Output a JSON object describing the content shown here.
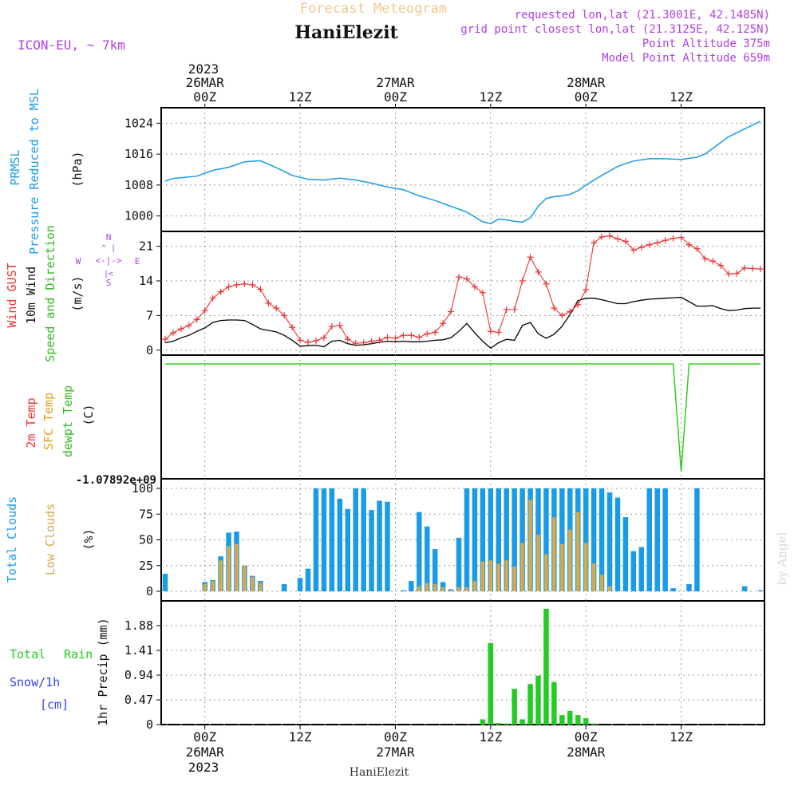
{
  "header": {
    "product": "Forecast Meteogram",
    "station": "HaniElezit",
    "model": "ICON-EU, ~ 7km",
    "requested": "requested lon,lat (21.3001E, 42.1485N)",
    "gridpoint": "grid point closest lon,lat (21.3125E, 42.125N)",
    "point_alt": "Point Altitude 375m",
    "model_alt": "Model Point Altitude 659m",
    "watermark": "by Angel"
  },
  "colors": {
    "pressure": "#1a9be6",
    "gust": "#ee3333",
    "wind": "#000000",
    "temp2m": "#ee3333",
    "sfc": "#e6a020",
    "dewpt": "#33cc22",
    "total_clouds": "#1a9be6",
    "low_clouds": "#d6a94a",
    "rain": "#22cc22",
    "snow": "#3344ee",
    "compass": "#b040e0",
    "title_faded": "#f0c890",
    "info": "#b040e0",
    "grid": "#999999"
  },
  "time_axis": {
    "top_year": "2023",
    "bottom_year": "2023",
    "ticks": [
      {
        "hour": 0,
        "label": "00Z",
        "date": "26MAR"
      },
      {
        "hour": 12,
        "label": "12Z",
        "date": ""
      },
      {
        "hour": 24,
        "label": "00Z",
        "date": "27MAR"
      },
      {
        "hour": 36,
        "label": "12Z",
        "date": ""
      },
      {
        "hour": 48,
        "label": "00Z",
        "date": "28MAR"
      },
      {
        "hour": 60,
        "label": "12Z",
        "date": ""
      }
    ]
  },
  "panels": {
    "pressure": {
      "label1": "PRMSL",
      "label2": "Pressure Reduced to MSL",
      "unit": "(hPa)"
    },
    "wind": {
      "label1": "Wind GUST",
      "label2": "10m Wind",
      "label3": "Speed and Direction",
      "unit": "(m/s)",
      "compass": {
        "n": "N",
        "s": "S",
        "w": "W",
        "e": "E"
      }
    },
    "temp": {
      "label1": "2m Temp",
      "label2": "SFC Temp",
      "label3": "dewpt Temp",
      "unit": "(C)"
    },
    "clouds": {
      "label1": "Total Clouds",
      "label2": "Low Clouds",
      "unit": "(%)"
    },
    "precip": {
      "label1": "Total",
      "label1b": "Rain",
      "label2": "Snow/1h",
      "label3": "[cm]",
      "unit": "1hr Precip (mm)"
    }
  },
  "chart_data": [
    {
      "type": "line",
      "title": "",
      "ylabel": "Pressure Reduced to MSL (hPa)",
      "ylim": [
        996,
        1028
      ],
      "yticks": [
        1000,
        1008,
        1016,
        1024
      ],
      "xlim": [
        -5.5,
        70.5
      ],
      "grid": true,
      "x": [
        -5,
        -4,
        -3,
        -1,
        1,
        3,
        5,
        7,
        9,
        11,
        13,
        15,
        17,
        19,
        21,
        23,
        25,
        27,
        29,
        31,
        33,
        35,
        36,
        37,
        38,
        39,
        40,
        41,
        42,
        43,
        44,
        45,
        46,
        47,
        48,
        50,
        52,
        54,
        56,
        58,
        60,
        62,
        63,
        64,
        66,
        68,
        70
      ],
      "series": [
        {
          "name": "PRMSL",
          "values": [
            1009,
            1009.7,
            1009.9,
            1010.3,
            1011.8,
            1012.6,
            1014,
            1014.3,
            1012.5,
            1010.5,
            1009.5,
            1009.3,
            1009.8,
            1009.3,
            1008.5,
            1007.5,
            1006.8,
            1005.2,
            1004,
            1002.5,
            1001,
            998.5,
            998,
            999.2,
            999,
            998.6,
            998.4,
            999.5,
            1002.5,
            1004.5,
            1005,
            1005.2,
            1005.6,
            1006.5,
            1008,
            1010.5,
            1012.8,
            1014.2,
            1014.8,
            1014.8,
            1014.6,
            1015.2,
            1016,
            1017.5,
            1020.5,
            1022.5,
            1024.5
          ]
        }
      ]
    },
    {
      "type": "line",
      "title": "",
      "ylabel": "Wind GUST / 10m Wind Speed and Direction (m/s)",
      "ylim": [
        -1,
        24
      ],
      "yticks": [
        0,
        7,
        14,
        21
      ],
      "xlim": [
        -5.5,
        70.5
      ],
      "grid": true,
      "x": [
        -5,
        -4,
        -3,
        -2,
        -1,
        0,
        1,
        2,
        3,
        4,
        5,
        6,
        7,
        8,
        9,
        10,
        11,
        12,
        13,
        14,
        15,
        16,
        17,
        18,
        19,
        20,
        21,
        22,
        23,
        24,
        25,
        26,
        27,
        28,
        29,
        30,
        31,
        32,
        33,
        34,
        35,
        36,
        37,
        38,
        39,
        40,
        41,
        42,
        43,
        44,
        45,
        46,
        47,
        48,
        49,
        50,
        51,
        52,
        53,
        54,
        55,
        56,
        57,
        58,
        59,
        60,
        61,
        62,
        63,
        64,
        65,
        66,
        67,
        68,
        69,
        70
      ],
      "series": [
        {
          "name": "Wind GUST",
          "values": [
            2.2,
            3.5,
            4.3,
            5.0,
            6.2,
            8.0,
            10.5,
            11.8,
            12.8,
            13.2,
            13.4,
            13.2,
            12.3,
            9.5,
            8.5,
            7.0,
            4.6,
            2.0,
            1.6,
            1.9,
            2.5,
            4.8,
            5.0,
            2.2,
            1.4,
            1.5,
            1.8,
            2.0,
            2.6,
            2.4,
            3.0,
            3.0,
            2.6,
            3.3,
            3.6,
            5.4,
            7.8,
            14.8,
            14.4,
            12.8,
            11.6,
            3.8,
            3.6,
            8.2,
            8.2,
            14.0,
            18.8,
            15.8,
            13.4,
            8.5,
            7.0,
            7.8,
            9.2,
            12.2,
            21.7,
            22.9,
            23.1,
            22.5,
            22.0,
            20.2,
            20.8,
            21.3,
            21.7,
            22.2,
            22.6,
            22.8,
            21.3,
            20.5,
            18.5,
            18.0,
            17.1,
            15.4,
            15.5,
            16.6,
            16.5,
            16.4
          ]
        },
        {
          "name": "10m Wind",
          "values": [
            1.5,
            1.8,
            2.5,
            3.0,
            3.8,
            4.5,
            5.6,
            6.0,
            6.1,
            6.1,
            6.0,
            5.2,
            4.3,
            4.0,
            3.7,
            3.0,
            2.0,
            0.8,
            0.9,
            1.0,
            0.7,
            1.8,
            2.0,
            1.3,
            1.0,
            1.1,
            1.3,
            1.6,
            1.8,
            1.7,
            1.8,
            1.7,
            1.7,
            1.8,
            2.0,
            2.1,
            2.5,
            3.8,
            5.4,
            3.5,
            1.8,
            0.4,
            1.5,
            2.2,
            2.0,
            5.0,
            5.6,
            3.3,
            2.4,
            3.2,
            4.8,
            7.2,
            10.0,
            10.5,
            10.5,
            10.2,
            9.8,
            9.4,
            9.4,
            9.8,
            10.1,
            10.3,
            10.4,
            10.5,
            10.6,
            10.7,
            9.8,
            8.9,
            8.9,
            9.0,
            8.4,
            8.0,
            8.1,
            8.4,
            8.5,
            8.5
          ]
        }
      ]
    },
    {
      "type": "line",
      "title": "",
      "ylabel": "2m Temp / SFC Temp / dewpt Temp (C)",
      "ylim_label": "-1.07892e+09",
      "x": [
        -5,
        59,
        60,
        61,
        70
      ],
      "series": [
        {
          "name": "dewpt Temp",
          "values": [
            0,
            0,
            -1078920000.0,
            0,
            0
          ]
        }
      ]
    },
    {
      "type": "bar",
      "title": "",
      "ylabel": "Total Clouds / Low Clouds (%)",
      "ylim": [
        0,
        100
      ],
      "yticks": [
        0,
        25,
        50,
        75,
        100
      ],
      "xlim": [
        -5.5,
        70.5
      ],
      "grid": true,
      "x": [
        -5,
        -4,
        -3,
        -2,
        -1,
        0,
        1,
        2,
        3,
        4,
        5,
        6,
        7,
        8,
        9,
        10,
        11,
        12,
        13,
        14,
        15,
        16,
        17,
        18,
        19,
        20,
        21,
        22,
        23,
        24,
        25,
        26,
        27,
        28,
        29,
        30,
        31,
        32,
        33,
        34,
        35,
        36,
        37,
        38,
        39,
        40,
        41,
        42,
        43,
        44,
        45,
        46,
        47,
        48,
        49,
        50,
        51,
        52,
        53,
        54,
        55,
        56,
        57,
        58,
        59,
        60,
        61,
        62,
        63,
        64,
        65,
        66,
        67,
        68,
        69,
        70
      ],
      "series": [
        {
          "name": "Total Clouds",
          "values": [
            17,
            0,
            0,
            0,
            0,
            9,
            11,
            34,
            57,
            58,
            25,
            15,
            10,
            0,
            0,
            7,
            0,
            13,
            22,
            100,
            100,
            100,
            90,
            80,
            100,
            100,
            79,
            88,
            87,
            0,
            1,
            10,
            77,
            63,
            41,
            9,
            2,
            52,
            100,
            100,
            100,
            100,
            100,
            100,
            100,
            100,
            100,
            100,
            100,
            100,
            100,
            100,
            100,
            100,
            100,
            100,
            96,
            91,
            72,
            39,
            43,
            100,
            100,
            100,
            3,
            0,
            7,
            100,
            0,
            0,
            0,
            0,
            0,
            5,
            0,
            1
          ]
        },
        {
          "name": "Low Clouds",
          "values": [
            0,
            0,
            0,
            0,
            0,
            7,
            10,
            30,
            44,
            46,
            25,
            14,
            8,
            0,
            0,
            0,
            0,
            0,
            0,
            0,
            0,
            0,
            0,
            0,
            0,
            0,
            0,
            0,
            0,
            0,
            0,
            0,
            5,
            8,
            7,
            4,
            1,
            4,
            4,
            10,
            29,
            30,
            27,
            30,
            24,
            47,
            89,
            55,
            36,
            72,
            46,
            60,
            77,
            47,
            27,
            16,
            5,
            0,
            0,
            0,
            0,
            0,
            0,
            0,
            0,
            0,
            0,
            0,
            0,
            0,
            0,
            0,
            0,
            0,
            0,
            0
          ]
        }
      ]
    },
    {
      "type": "bar",
      "title": "",
      "ylabel": "1hr Precip (mm)",
      "ylim": [
        0,
        2.35
      ],
      "yticks": [
        0,
        0.47,
        0.94,
        1.41,
        1.88
      ],
      "xlim": [
        -5.5,
        70.5
      ],
      "grid": true,
      "x": [
        35,
        36,
        37,
        38,
        39,
        40,
        41,
        42,
        43,
        44,
        45,
        46,
        47,
        48,
        49
      ],
      "series": [
        {
          "name": "Total Rain",
          "values": [
            0.1,
            1.55,
            0.03,
            0.02,
            0.68,
            0.1,
            0.77,
            0.93,
            2.2,
            0.81,
            0.18,
            0.26,
            0.18,
            0.12,
            0.02
          ]
        }
      ]
    }
  ]
}
